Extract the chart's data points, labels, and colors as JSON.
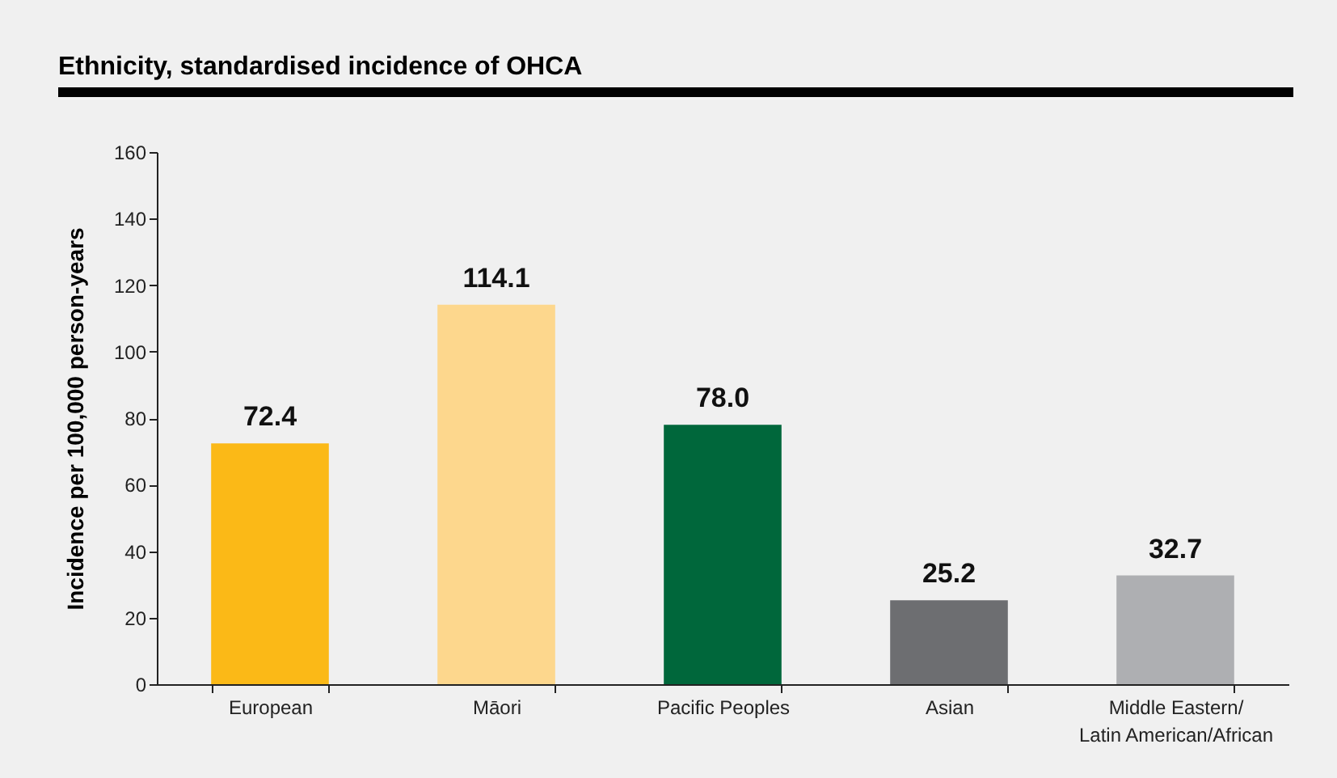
{
  "chart_data": {
    "type": "bar",
    "title": "Ethnicity, standardised incidence of OHCA",
    "ylabel": "Incidence per 100,000 person-years",
    "categories": [
      "European",
      "Māori",
      "Pacific Peoples",
      "Asian",
      "Middle Eastern/\nLatin American/African"
    ],
    "values": [
      72.4,
      114.1,
      78.0,
      25.2,
      32.7
    ],
    "colors": [
      "#fbb917",
      "#fdd78d",
      "#00673b",
      "#6d6e71",
      "#aeafb2"
    ],
    "value_labels": [
      "72.4",
      "114.1",
      "78.0",
      "25.2",
      "32.7"
    ],
    "ylim": [
      0,
      160
    ],
    "yticks": [
      0,
      20,
      40,
      60,
      80,
      100,
      120,
      140,
      160
    ],
    "grid": false
  }
}
